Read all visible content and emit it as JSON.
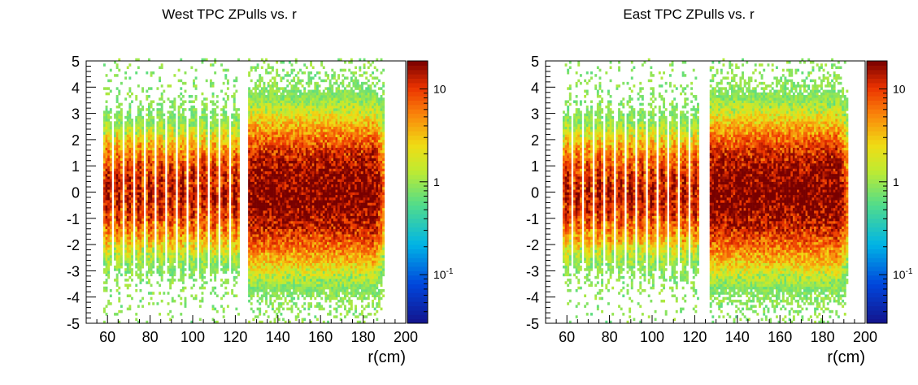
{
  "chart_data": [
    {
      "type": "heatmap",
      "title": "West TPC ZPulls vs. r",
      "xlabel": "r(cm)",
      "ylabel": "",
      "xlim": [
        50,
        200
      ],
      "ylim": [
        -5,
        5
      ],
      "xticks": [
        "60",
        "80",
        "100",
        "120",
        "140",
        "160",
        "180",
        "200"
      ],
      "yticks": [
        "-5",
        "-4",
        "-3",
        "-2",
        "-1",
        "0",
        "1",
        "2",
        "3",
        "4",
        "5"
      ],
      "colorbar": {
        "scale": "log",
        "labels": [
          "10",
          "1",
          "10-1"
        ],
        "range": [
          0.03,
          20
        ]
      },
      "inner_rows_r": [
        60,
        65,
        70,
        75,
        80,
        85,
        90,
        95,
        100,
        105,
        110,
        115,
        120
      ],
      "outer_region_r": [
        126,
        190
      ],
      "gap_r": 125,
      "core_pull_sigma": 1.0,
      "peak_count": 20
    },
    {
      "type": "heatmap",
      "title": "East TPC ZPulls vs. r",
      "xlabel": "r(cm)",
      "ylabel": "",
      "xlim": [
        50,
        200
      ],
      "ylim": [
        -5,
        5
      ],
      "xticks": [
        "60",
        "80",
        "100",
        "120",
        "140",
        "160",
        "180",
        "200"
      ],
      "yticks": [
        "-5",
        "-4",
        "-3",
        "-2",
        "-1",
        "0",
        "1",
        "2",
        "3",
        "4",
        "5"
      ],
      "colorbar": {
        "scale": "log",
        "labels": [
          "10",
          "1",
          "10-1"
        ],
        "range": [
          0.03,
          20
        ]
      },
      "inner_rows_r": [
        60,
        65,
        70,
        75,
        80,
        85,
        90,
        95,
        100,
        105,
        110,
        115,
        120
      ],
      "outer_region_r": [
        127,
        192
      ],
      "gap_r": 125,
      "core_pull_sigma": 1.0,
      "peak_count": 20
    }
  ]
}
